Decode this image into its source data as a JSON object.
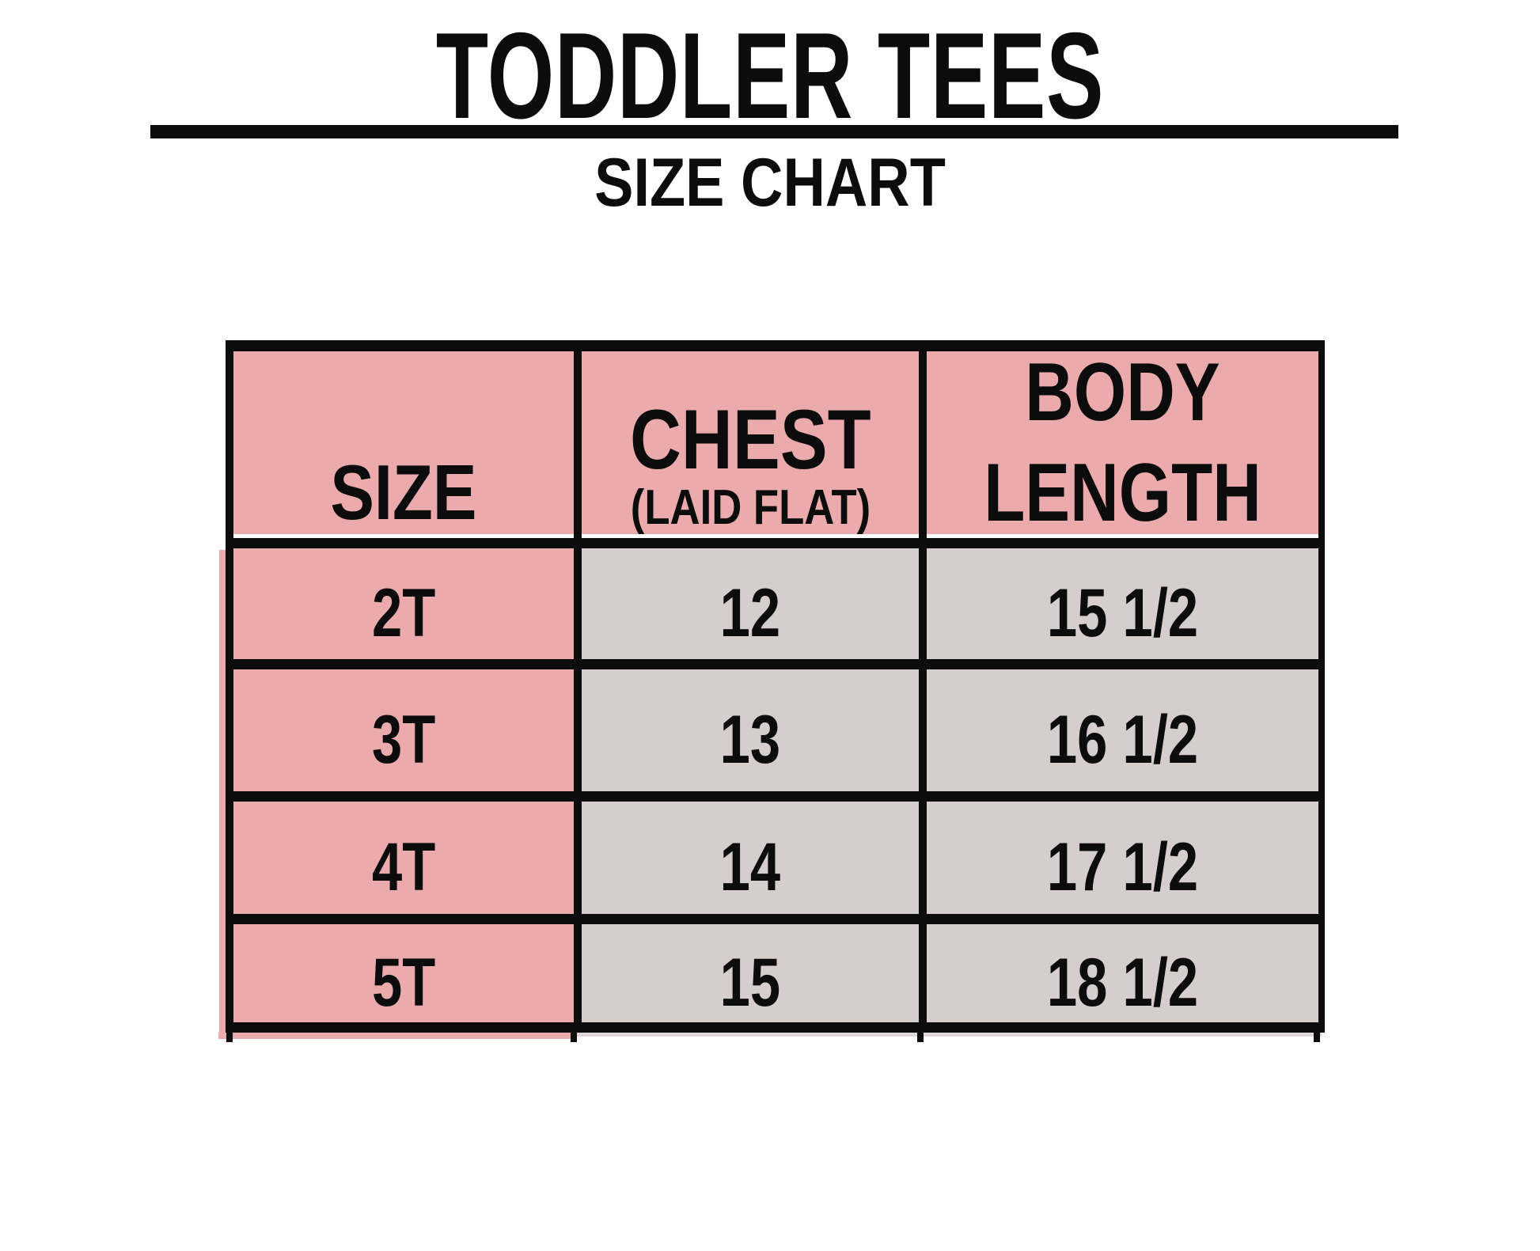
{
  "title": "TODDLER TEES",
  "subtitle": "SIZE CHART",
  "colors": {
    "header_pink": "#ebaaac",
    "cell_gray": "#d5cecd",
    "line_black": "#0c0c0c",
    "background": "#ffffff"
  },
  "table": {
    "headers": [
      {
        "label": "SIZE",
        "sublabel": ""
      },
      {
        "label": "CHEST",
        "sublabel": "(LAID FLAT)"
      },
      {
        "label": "BODY LENGTH",
        "sublabel": ""
      }
    ]
  },
  "chart_data": {
    "type": "table",
    "title": "TODDLER TEES",
    "subtitle": "SIZE CHART",
    "columns": [
      "SIZE",
      "CHEST (LAID FLAT)",
      "BODY LENGTH"
    ],
    "rows": [
      [
        "2T",
        "12",
        "15 1/2"
      ],
      [
        "3T",
        "13",
        "16 1/2"
      ],
      [
        "4T",
        "14",
        "17 1/2"
      ],
      [
        "5T",
        "15",
        "18 1/2"
      ]
    ],
    "units": "inches",
    "layout": "pink header row and pink size column, gray measurement cells, thick black gridlines"
  }
}
